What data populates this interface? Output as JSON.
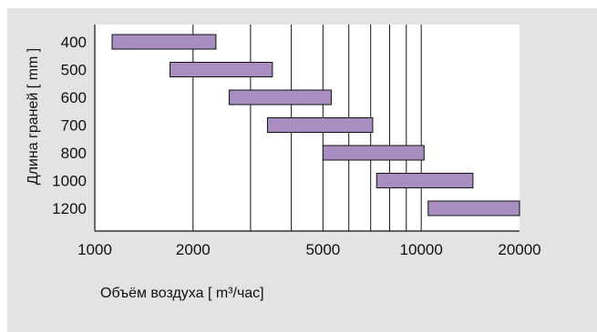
{
  "chart_data": {
    "type": "bar",
    "orientation": "horizontal-range",
    "categories": [
      "400",
      "500",
      "600",
      "700",
      "800",
      "1000",
      "1200"
    ],
    "ranges": [
      [
        1130,
        2350
      ],
      [
        1700,
        3500
      ],
      [
        2580,
        5300
      ],
      [
        3380,
        7100
      ],
      [
        5000,
        10200
      ],
      [
        7300,
        14400
      ],
      [
        10500,
        20000
      ]
    ],
    "x_scale": "log",
    "xlim": [
      1000,
      20000
    ],
    "x_ticks": [
      1000,
      2000,
      5000,
      10000,
      20000
    ],
    "x_tick_labels": [
      "1000",
      "2000",
      "5000",
      "10000",
      "20000"
    ],
    "x_minor_gridlines": [
      2000,
      3000,
      4000,
      5000,
      6000,
      7000,
      8000,
      9000,
      10000
    ],
    "xlabel": "Объём воздуха [ m³/час]",
    "ylabel": "Длина граней [ mm ]",
    "grid": true,
    "legend": "none"
  },
  "colors": {
    "bar_fill": "#a78dc0",
    "bar_stroke": "#111111",
    "background": "#e3e3e3",
    "plot_area": "#ffffff",
    "axis": "#111111"
  }
}
